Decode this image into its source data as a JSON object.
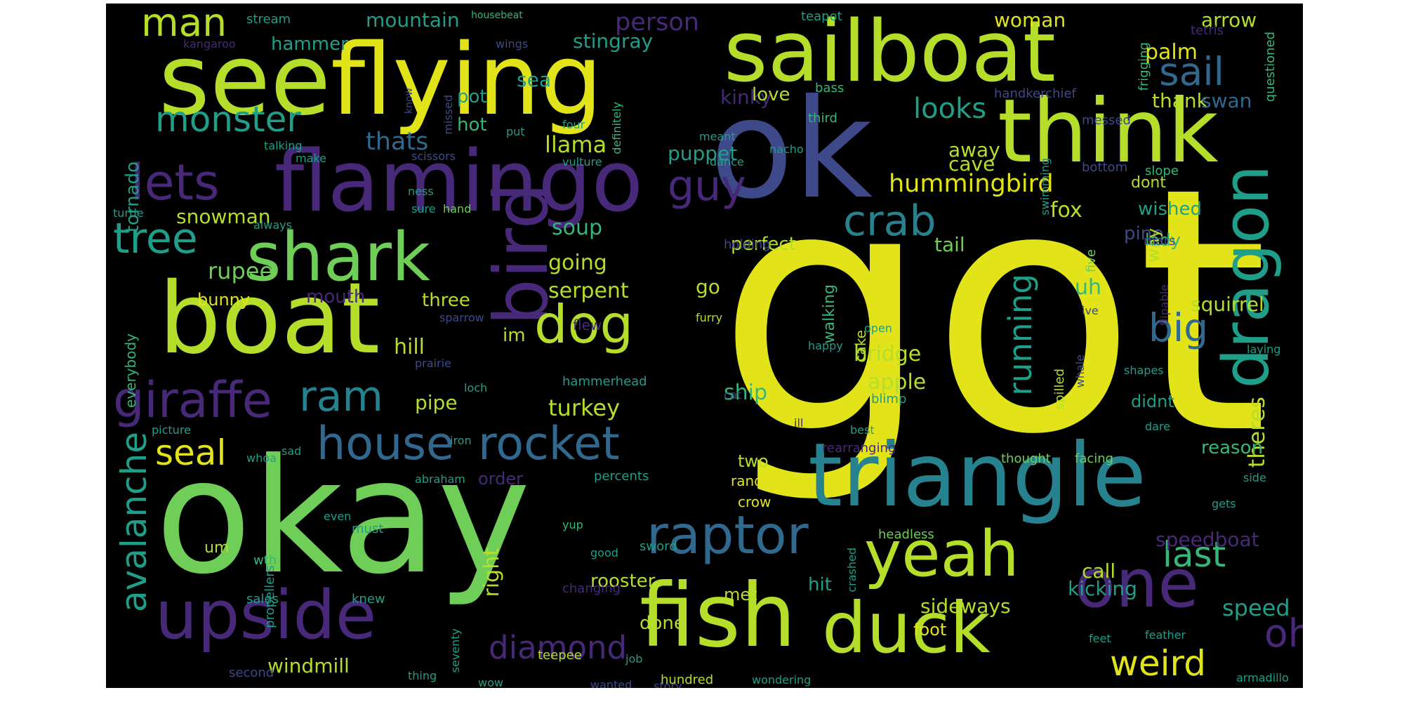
{
  "colors": {
    "yellow": "#e2e419",
    "yellowgreen": "#b5de2b",
    "lightgreen": "#6ece58",
    "green": "#35b779",
    "teal": "#1f9e89",
    "tealdark": "#26828e",
    "blue": "#31688e",
    "indigo": "#3e4989",
    "purple": "#482878",
    "darkpurple": "#440154",
    "background": "#000000"
  },
  "words": [
    "got",
    "okay",
    "ok",
    "flying",
    "see",
    "sailboat",
    "flamingo",
    "boat",
    "think",
    "triangle",
    "fish",
    "duck",
    "upside",
    "one",
    "yeah",
    "dragon",
    "shark",
    "bird",
    "lets",
    "giraffe",
    "raptor",
    "house",
    "rocket",
    "ram",
    "dog",
    "weird",
    "man",
    "sail",
    "monster",
    "crab",
    "tree",
    "guy",
    "big",
    "running",
    "avalanche",
    "diamond",
    "oh",
    "seal",
    "last",
    "hummingbird",
    "looks",
    "thats",
    "llama",
    "kinky",
    "mountain",
    "hammer",
    "person",
    "sea",
    "pot",
    "hot",
    "stingray",
    "woman",
    "palm",
    "arrow",
    "fox",
    "cave",
    "away",
    "tail",
    "rupee",
    "bunny",
    "mouth",
    "three",
    "hill",
    "pipe",
    "turkey",
    "serpent",
    "going",
    "soup",
    "puppet",
    "snowman",
    "tornado",
    "everybody",
    "ship",
    "bridge",
    "apple",
    "perfect",
    "walking",
    "theres",
    "reason",
    "didnt",
    "uh",
    "squirrel",
    "speed",
    "speedboat",
    "windmill",
    "right",
    "order",
    "two",
    "rooster",
    "done",
    "met",
    "sideways",
    "foot",
    "call",
    "kicking",
    "hit",
    "um",
    "crow",
    "random",
    "cake",
    "headless",
    "thought",
    "facing",
    "feet",
    "feather",
    "armadillo",
    "wondering",
    "hundred",
    "wanted",
    "story",
    "job",
    "wow",
    "thing",
    "seventy",
    "teepee",
    "changing",
    "sword",
    "good",
    "percents",
    "blimp",
    "crashed",
    "iron",
    "abraham",
    "propellers",
    "must",
    "even",
    "sales",
    "knew",
    "second",
    "wth",
    "whoa",
    "picture",
    "sad",
    "loch",
    "hammerhead",
    "prairie",
    "sparrow",
    "flew",
    "im",
    "go",
    "furry",
    "happy",
    "cat",
    "open",
    "ill",
    "best",
    "spilled",
    "whale",
    "flipable",
    "laying",
    "shapes",
    "dare",
    "gets",
    "side",
    "five",
    "ive",
    "pine",
    "lady",
    "way",
    "wished",
    "dont",
    "slope",
    "mars",
    "bottom",
    "swimming",
    "ness",
    "sure",
    "hand",
    "always",
    "turtle",
    "make",
    "scissors",
    "talking",
    "dance",
    "vulture",
    "nacho",
    "meant",
    "put",
    "four",
    "definitely",
    "know",
    "missed",
    "wings",
    "kangaroo",
    "stream",
    "housebeat",
    "teapot",
    "bass",
    "third",
    "love",
    "handkerchief",
    "frigging",
    "messed",
    "thank",
    "swan",
    "questioned",
    "tetris",
    "holding",
    "rearranging",
    "yup"
  ]
}
